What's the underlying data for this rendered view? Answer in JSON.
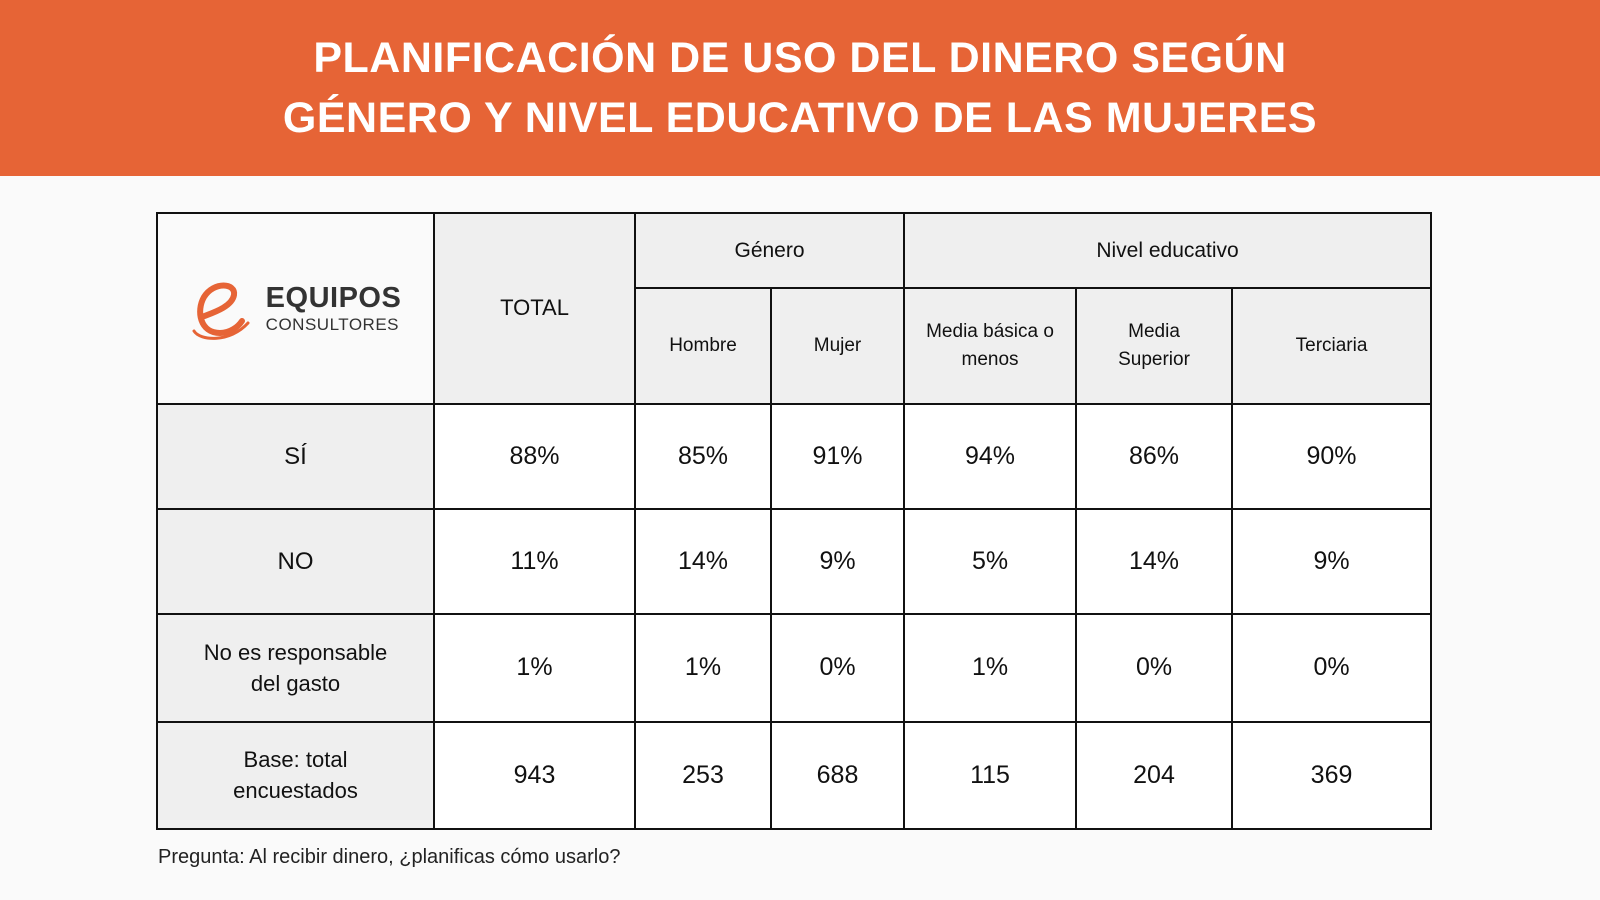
{
  "header": {
    "title_line1": "PLANIFICACIÓN DE USO DEL DINERO SEGÚN",
    "title_line2": "GÉNERO Y NIVEL EDUCATIVO DE LAS MUJERES"
  },
  "colors": {
    "banner": "#e66436",
    "logo": "#e66436",
    "header_cell": "#efefef"
  },
  "logo": {
    "icon": "e-swoosh-logo-icon",
    "brand": "EQUIPOS",
    "sub": "CONSULTORES"
  },
  "chart_data": {
    "type": "table",
    "headers": {
      "total": "TOTAL",
      "groups": [
        "Género",
        "Nivel educativo"
      ],
      "columns": [
        "Hombre",
        "Mujer",
        "Media básica o menos",
        "Media Superior",
        "Terciaria"
      ]
    },
    "rows": [
      {
        "label": "SÍ",
        "values": [
          "88%",
          "85%",
          "91%",
          "94%",
          "86%",
          "90%"
        ]
      },
      {
        "label": "NO",
        "values": [
          "11%",
          "14%",
          "9%",
          "5%",
          "14%",
          "9%"
        ]
      },
      {
        "label": "No es responsable del gasto",
        "values": [
          "1%",
          "1%",
          "0%",
          "1%",
          "0%",
          "0%"
        ]
      },
      {
        "label": "Base: total encuestados",
        "values": [
          "943",
          "253",
          "688",
          "115",
          "204",
          "369"
        ]
      }
    ]
  },
  "footnote": "Pregunta: Al recibir dinero, ¿planificas cómo usarlo?"
}
